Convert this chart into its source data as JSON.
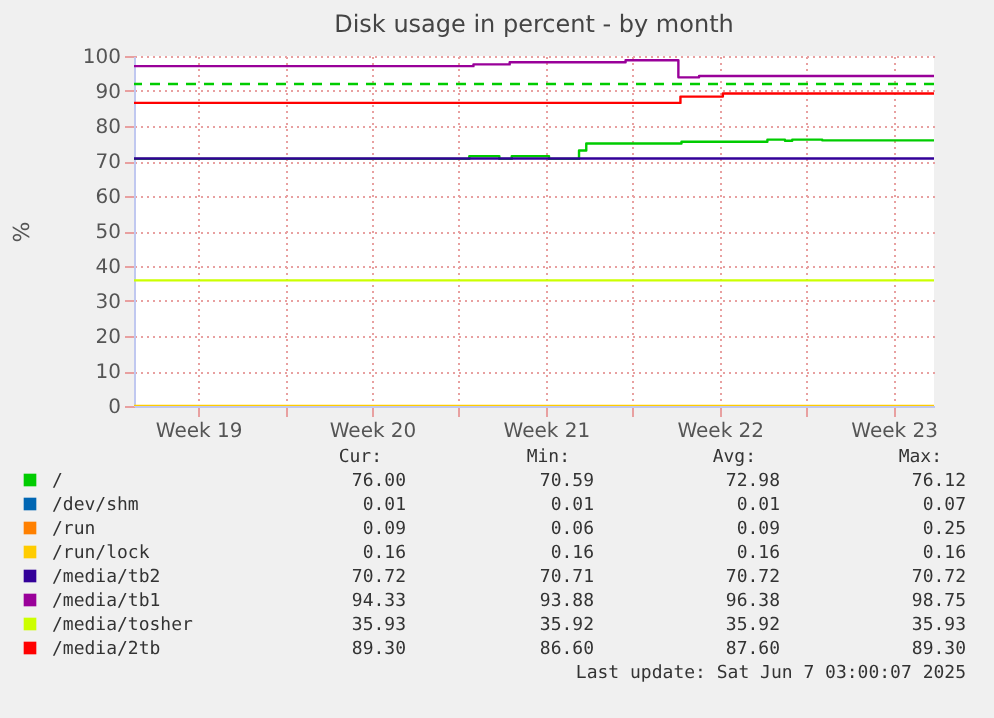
{
  "chart_data": {
    "type": "step",
    "title": "Disk usage in percent - by month",
    "ylabel": "%",
    "xlim": [
      "2025-05-05T22:00",
      "2025-06-07T03:00"
    ],
    "xticks": [
      {
        "value": "2025-05-08T12:00",
        "label": "Week 19"
      },
      {
        "value": "2025-05-12",
        "label": null
      },
      {
        "value": "2025-05-15T12:00",
        "label": "Week 20"
      },
      {
        "value": "2025-05-19",
        "label": null
      },
      {
        "value": "2025-05-22T12:00",
        "label": "Week 21"
      },
      {
        "value": "2025-05-26",
        "label": null
      },
      {
        "value": "2025-05-29T12:00",
        "label": "Week 22"
      },
      {
        "value": "2025-06-02",
        "label": null
      },
      {
        "value": "2025-06-05T12:00",
        "label": "Week 23"
      }
    ],
    "ylim": [
      0,
      100
    ],
    "yticks": [
      0,
      10,
      20,
      30,
      40,
      50,
      60,
      70,
      80,
      90,
      100
    ],
    "grid": true,
    "legend": "bottom",
    "series": [
      {
        "name": "/",
        "color": "#00cc00",
        "x": [
          "2025-05-05T22:00",
          "2025-05-19T10:00",
          "2025-05-20T15:00",
          "2025-05-21T03:00",
          "2025-05-22T15:00",
          "2025-05-23T20:00",
          "2025-05-24T03:00",
          "2025-05-27T23:00",
          "2025-05-31T10:00",
          "2025-06-01T03:00",
          "2025-06-01T10:00",
          "2025-06-02T15:00",
          "2025-06-07T03:00"
        ],
        "values": [
          70.6,
          71.4,
          70.6,
          71.4,
          70.6,
          73,
          75,
          75.5,
          76.1,
          75.8,
          76.1,
          75.9,
          76.0
        ]
      },
      {
        "name": "/dev/shm",
        "color": "#0066b3"
      },
      {
        "name": "/run",
        "color": "#ff8000"
      },
      {
        "name": "/run/lock",
        "color": "#ffcc00",
        "x": [
          "2025-05-05T22:00",
          "2025-06-07T03:00"
        ],
        "values": [
          0,
          0
        ]
      },
      {
        "name": "/media/tb2",
        "color": "#330099",
        "x": [
          "2025-05-05T22:00",
          "2025-06-07T03:00"
        ],
        "values": [
          70.7,
          70.7
        ]
      },
      {
        "name": "/media/tb1",
        "color": "#990099",
        "x": [
          "2025-05-05T22:00",
          "2025-05-19T14:00",
          "2025-05-21T01:00",
          "2025-05-25T17:00",
          "2025-05-27T20:00",
          "2025-05-28T16:00",
          "2025-06-07T03:00"
        ],
        "values": [
          97.1,
          97.6,
          98.2,
          98.8,
          93.9,
          94.3,
          94.3
        ]
      },
      {
        "name": "/media/tosher",
        "color": "#ccff00",
        "x": [
          "2025-05-05T22:00",
          "2025-06-07T03:00"
        ],
        "values": [
          35.9,
          35.9
        ]
      },
      {
        "name": "/media/2tb",
        "color": "#ff0000",
        "x": [
          "2025-05-05T22:00",
          "2025-05-27T22:00",
          "2025-05-29T15:00",
          "2025-06-07T03:00"
        ],
        "values": [
          86.6,
          88.4,
          89.3,
          89.3
        ]
      }
    ],
    "ref_lines": [
      {
        "axis": "y",
        "value": 92,
        "label": null,
        "color": "#00cc00",
        "line_style": "dashed"
      }
    ],
    "annotations": [
      "Cur:",
      "Min:",
      "Avg:",
      "Max:",
      "76.00",
      "70.59",
      "72.98",
      "76.12",
      "0.01",
      "0.01",
      "0.01",
      "0.07",
      "0.09",
      "0.06",
      "0.09",
      "0.25",
      "0.16",
      "0.16",
      "0.16",
      "0.16",
      "70.72",
      "70.71",
      "70.72",
      "70.72",
      "94.33",
      "93.88",
      "96.38",
      "98.75",
      "35.93",
      "35.92",
      "35.92",
      "35.93",
      "89.30",
      "86.60",
      "87.60",
      "89.30",
      "Last update: Sat Jun  7 03:00:07 2025"
    ]
  }
}
